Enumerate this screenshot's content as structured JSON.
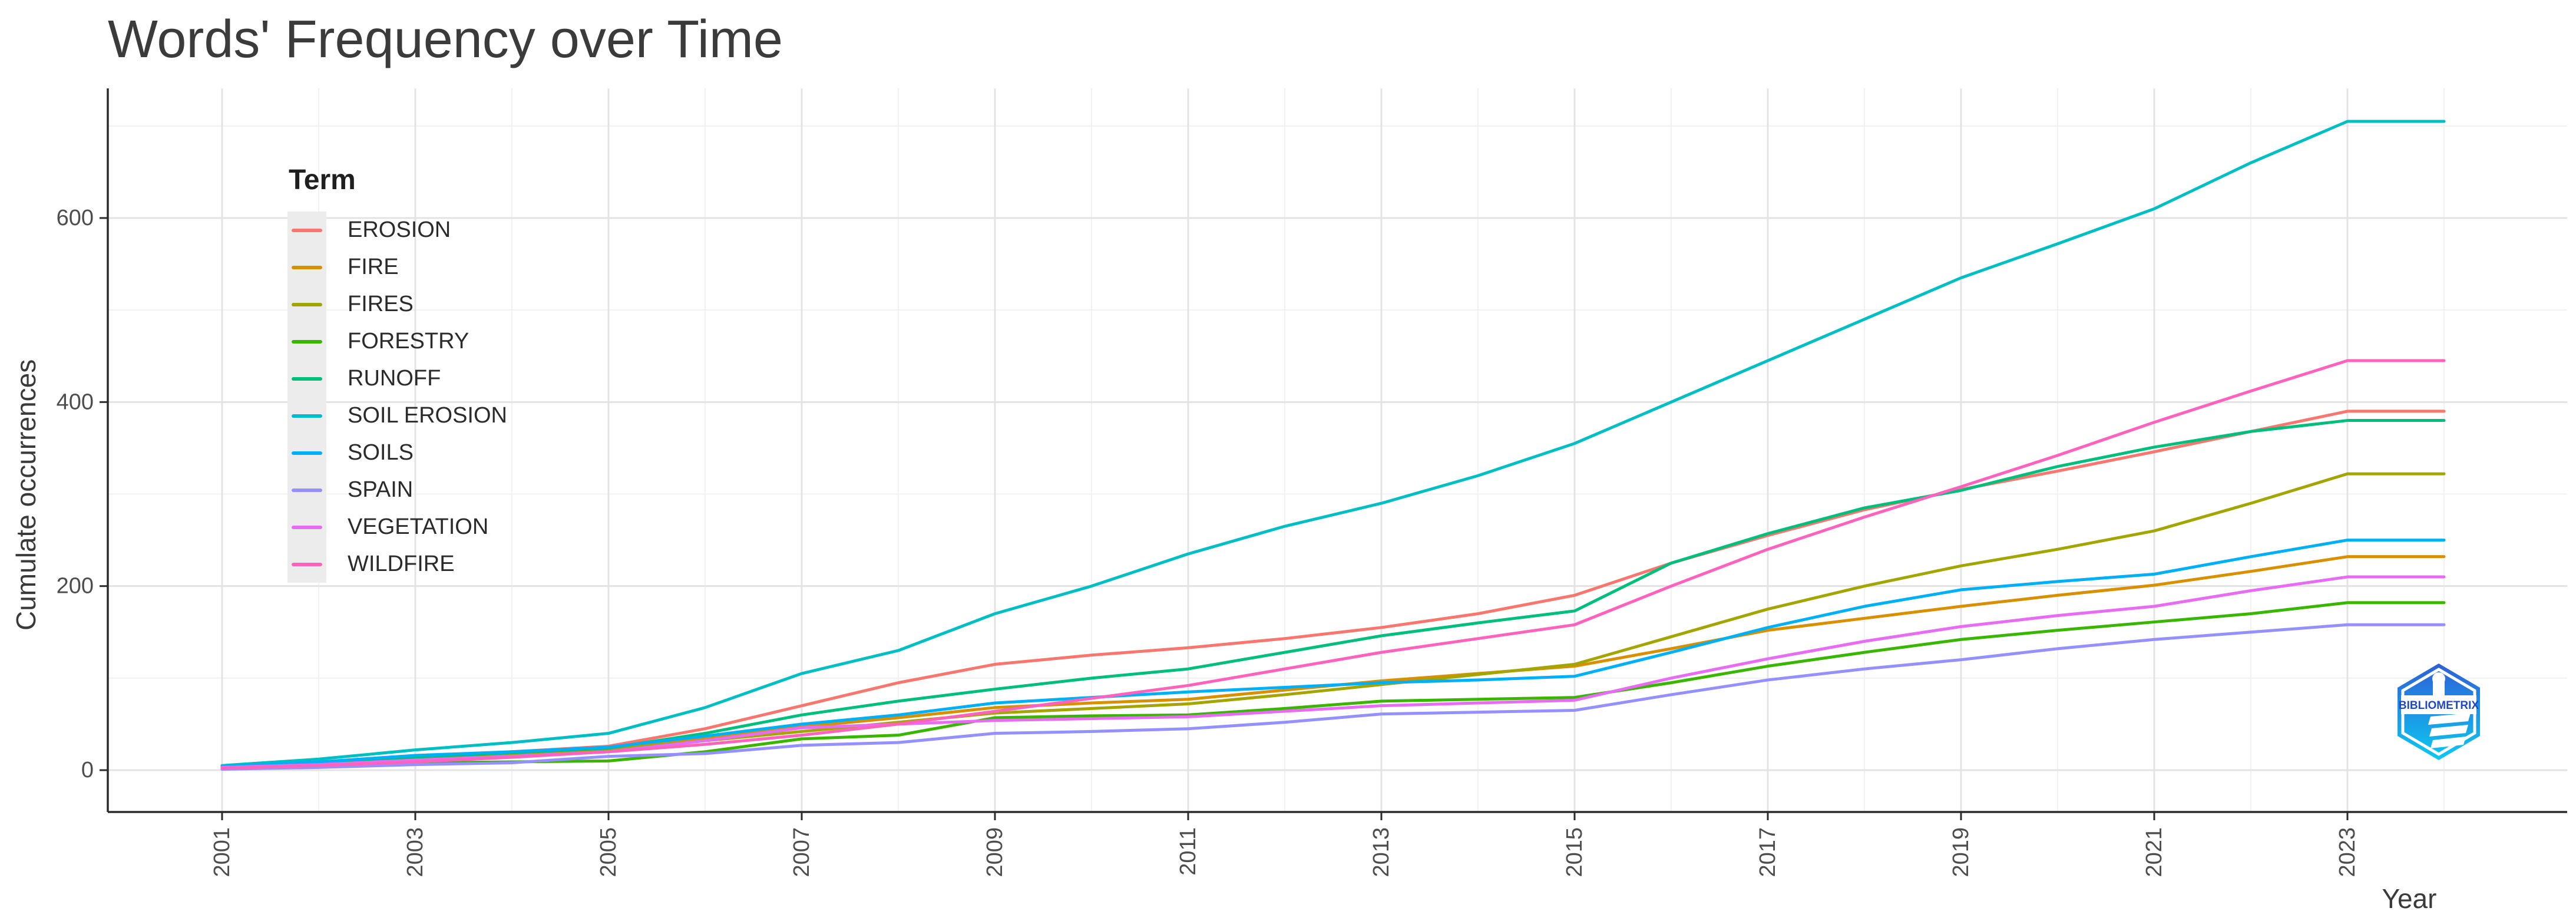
{
  "title": "Words' Frequency over Time",
  "legend": {
    "title": "Term"
  },
  "axes": {
    "x_label": "Year",
    "y_label": "Cumulate occurrences",
    "x_ticks": [
      "2001",
      "2003",
      "2005",
      "2007",
      "2009",
      "2011",
      "2013",
      "2015",
      "2017",
      "2019",
      "2021",
      "2023"
    ],
    "y_ticks": [
      "0",
      "200",
      "400",
      "600"
    ]
  },
  "logo": {
    "text": "BIBLIOMETRIX"
  },
  "colors": {
    "background": "#ffffff",
    "grid_major": "#e3e3e3",
    "grid_minor": "#f0f0f0",
    "axis_line": "#2b2b2b",
    "tick_label": "#4d4d4d",
    "title_text": "#3b3b3b",
    "logo_blue_top": "#2e5fd6",
    "logo_blue_bottom": "#0cc9f2"
  },
  "chart_data": {
    "type": "line",
    "title": "Words' Frequency over Time",
    "xlabel": "Year",
    "ylabel": "Cumulate occurrences",
    "grid": true,
    "legend_position": "inside-top-left",
    "x_range": [
      2001,
      2024
    ],
    "ylim": [
      0,
      720
    ],
    "y_major": [
      0,
      200,
      400,
      600
    ],
    "y_minor": [
      100,
      300,
      500,
      700
    ],
    "x_major_years": [
      2001,
      2003,
      2005,
      2007,
      2009,
      2011,
      2013,
      2015,
      2017,
      2019,
      2021,
      2023
    ],
    "x_minor_years": [
      2002,
      2004,
      2006,
      2008,
      2010,
      2012,
      2014,
      2016,
      2018,
      2020,
      2022,
      2024
    ],
    "x": [
      2001,
      2002,
      2003,
      2004,
      2005,
      2006,
      2007,
      2008,
      2009,
      2010,
      2011,
      2012,
      2013,
      2014,
      2015,
      2016,
      2017,
      2018,
      2019,
      2020,
      2021,
      2022,
      2023,
      2024
    ],
    "series": [
      {
        "name": "EROSION",
        "color": "#F8766D",
        "values": [
          4,
          8,
          15,
          20,
          26,
          45,
          70,
          95,
          115,
          125,
          133,
          143,
          155,
          170,
          190,
          225,
          255,
          283,
          305,
          325,
          346,
          368,
          390,
          390
        ]
      },
      {
        "name": "FIRE",
        "color": "#D89000",
        "values": [
          4,
          8,
          14,
          19,
          24,
          35,
          47,
          57,
          68,
          73,
          77,
          87,
          97,
          105,
          113,
          132,
          152,
          165,
          178,
          190,
          201,
          216,
          232,
          232
        ]
      },
      {
        "name": "FIRES",
        "color": "#A3A500",
        "values": [
          3,
          7,
          12,
          17,
          22,
          32,
          42,
          52,
          62,
          67,
          72,
          82,
          93,
          104,
          115,
          145,
          175,
          200,
          222,
          240,
          260,
          290,
          322,
          322
        ]
      },
      {
        "name": "FORESTRY",
        "color": "#39B600",
        "values": [
          2,
          5,
          8,
          9,
          10,
          20,
          34,
          38,
          57,
          59,
          60,
          67,
          75,
          77,
          79,
          95,
          113,
          128,
          142,
          152,
          161,
          170,
          182,
          182
        ]
      },
      {
        "name": "RUNOFF",
        "color": "#00BF7D",
        "values": [
          3,
          7,
          14,
          19,
          24,
          40,
          60,
          75,
          88,
          100,
          110,
          128,
          146,
          160,
          173,
          225,
          257,
          285,
          304,
          330,
          351,
          368,
          380,
          380
        ]
      },
      {
        "name": "SOIL EROSION",
        "color": "#00BFC4",
        "values": [
          5,
          12,
          22,
          30,
          40,
          68,
          105,
          130,
          170,
          200,
          235,
          265,
          290,
          320,
          355,
          400,
          445,
          490,
          535,
          572,
          610,
          660,
          705,
          705
        ]
      },
      {
        "name": "SOILS",
        "color": "#00B0F6",
        "values": [
          4,
          9,
          16,
          20,
          25,
          37,
          50,
          60,
          73,
          79,
          85,
          90,
          95,
          98,
          102,
          128,
          155,
          178,
          196,
          205,
          213,
          232,
          250,
          250
        ]
      },
      {
        "name": "SPAIN",
        "color": "#9590FF",
        "values": [
          1,
          3,
          6,
          8,
          15,
          18,
          27,
          30,
          40,
          42,
          45,
          52,
          61,
          63,
          65,
          82,
          98,
          110,
          120,
          132,
          142,
          150,
          158,
          158
        ]
      },
      {
        "name": "VEGETATION",
        "color": "#E76BF3",
        "values": [
          3,
          6,
          11,
          15,
          20,
          32,
          46,
          50,
          54,
          56,
          58,
          64,
          70,
          73,
          76,
          100,
          121,
          140,
          156,
          168,
          178,
          195,
          210,
          210
        ]
      },
      {
        "name": "WILDFIRE",
        "color": "#FF62BC",
        "values": [
          2,
          5,
          9,
          14,
          20,
          28,
          38,
          50,
          64,
          78,
          92,
          110,
          128,
          143,
          158,
          200,
          240,
          275,
          308,
          342,
          378,
          412,
          445,
          445
        ]
      }
    ]
  }
}
